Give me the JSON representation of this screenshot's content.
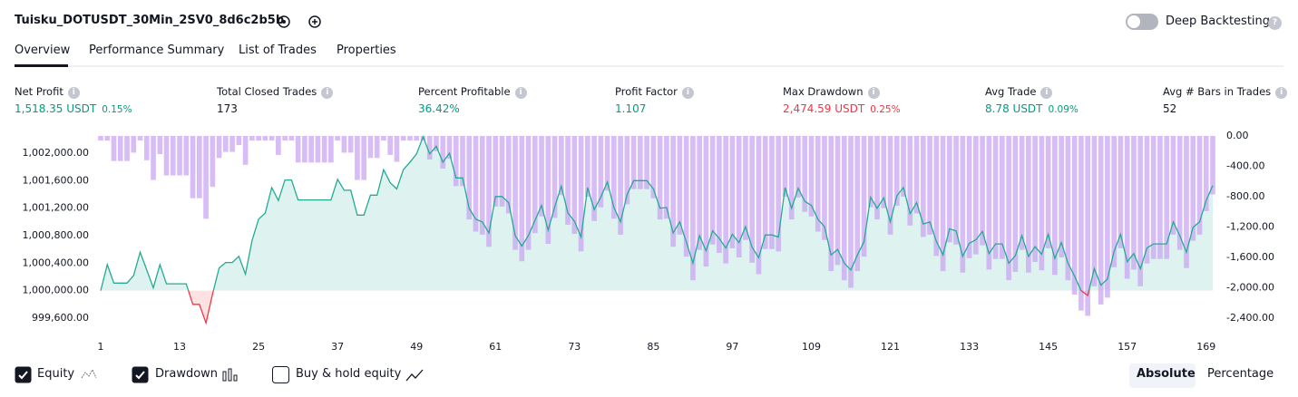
{
  "header": {
    "title": "Tuisku_DOTUSDT_30Min_2SV0_8d6c2b5b",
    "toggle_label": "Deep Backtesting"
  },
  "tabs": [
    "Overview",
    "Performance Summary",
    "List of Trades",
    "Properties"
  ],
  "metrics": [
    {
      "label": "Net Profit",
      "value": "1,518.35 USDT",
      "percent": "0.15%",
      "tone": "positive"
    },
    {
      "label": "Total Closed Trades",
      "value": "173",
      "tone": "neutral"
    },
    {
      "label": "Percent Profitable",
      "value": "36.42%",
      "tone": "positive"
    },
    {
      "label": "Profit Factor",
      "value": "1.107",
      "tone": "positive"
    },
    {
      "label": "Max Drawdown",
      "value": "2,474.59 USDT",
      "percent": "0.25%",
      "tone": "negative"
    },
    {
      "label": "Avg Trade",
      "value": "8.78 USDT",
      "percent": "0.09%",
      "tone": "positive"
    },
    {
      "label": "Avg # Bars in Trades",
      "value": "52",
      "tone": "neutral"
    }
  ],
  "chart_data": {
    "type": "equity_drawdown",
    "x": [
      1,
      2,
      3,
      4,
      5,
      6,
      7,
      8,
      9,
      10,
      11,
      12,
      13,
      14,
      15,
      16,
      17,
      18,
      19,
      20,
      21,
      22,
      23,
      24,
      25,
      26,
      27,
      28,
      29,
      30,
      31,
      32,
      33,
      34,
      35,
      36,
      37,
      38,
      39,
      40,
      41,
      42,
      43,
      44,
      45,
      46,
      47,
      48,
      49,
      50,
      51,
      52,
      53,
      54,
      55,
      56,
      57,
      58,
      59,
      60,
      61,
      62,
      63,
      64,
      65,
      66,
      67,
      68,
      69,
      70,
      71,
      72,
      73,
      74,
      75,
      76,
      77,
      78,
      79,
      80,
      81,
      82,
      83,
      84,
      85,
      86,
      87,
      88,
      89,
      90,
      91,
      92,
      93,
      94,
      95,
      96,
      97,
      98,
      99,
      100,
      101,
      102,
      103,
      104,
      105,
      106,
      107,
      108,
      109,
      110,
      111,
      112,
      113,
      114,
      115,
      116,
      117,
      118,
      119,
      120,
      121,
      122,
      123,
      124,
      125,
      126,
      127,
      128,
      129,
      130,
      131,
      132,
      133,
      134,
      135,
      136,
      137,
      138,
      139,
      140,
      141,
      142,
      143,
      144,
      145,
      146,
      147,
      148,
      149,
      150,
      151,
      152,
      153,
      154,
      155,
      156,
      157,
      158,
      159,
      160,
      161,
      162,
      163,
      164,
      165,
      166,
      167,
      168,
      169,
      170
    ],
    "series": [
      {
        "name": "Equity",
        "type": "line",
        "color": "#22ab94",
        "negative_color": "#f23645",
        "values": [
          1000000,
          1000380,
          1000110,
          1000110,
          1000110,
          1000220,
          1000560,
          1000300,
          1000040,
          1000380,
          1000100,
          1000100,
          1000100,
          1000100,
          999800,
          999800,
          999530,
          999950,
          1000330,
          1000410,
          1000410,
          1000500,
          1000240,
          1000730,
          1001040,
          1001130,
          1001500,
          1001310,
          1001610,
          1001610,
          1001320,
          1001320,
          1001320,
          1001320,
          1001320,
          1001320,
          1001620,
          1001460,
          1001460,
          1001100,
          1001100,
          1001390,
          1001390,
          1001760,
          1001570,
          1001480,
          1001760,
          1001870,
          1001990,
          1002240,
          1001990,
          1002100,
          1001870,
          1002000,
          1001640,
          1001640,
          1001200,
          1001040,
          1001000,
          1000840,
          1001370,
          1001370,
          1001280,
          1000800,
          1000650,
          1000800,
          1001020,
          1001240,
          1000880,
          1001220,
          1001520,
          1001130,
          1001010,
          1000780,
          1001500,
          1001180,
          1001360,
          1001580,
          1001210,
          1001000,
          1001400,
          1001600,
          1001600,
          1001600,
          1001480,
          1001200,
          1001210,
          1000840,
          1001000,
          1000710,
          1000400,
          1000800,
          1000580,
          1000870,
          1000760,
          1000620,
          1000820,
          1000700,
          1000930,
          1000630,
          1000480,
          1000810,
          1000810,
          1000780,
          1001500,
          1001200,
          1001490,
          1001300,
          1001240,
          1001040,
          1000930,
          1000520,
          1000600,
          1000400,
          1000300,
          1000520,
          1000710,
          1001360,
          1001200,
          1001350,
          1001000,
          1001380,
          1001500,
          1001120,
          1001280,
          1000970,
          1001000,
          1000720,
          1000520,
          1000900,
          1000870,
          1000500,
          1000690,
          1000740,
          1000860,
          1000540,
          1000680,
          1000680,
          1000400,
          1000510,
          1000800,
          1000500,
          1000640,
          1000530,
          1000820,
          1000470,
          1000700,
          1000400,
          1000210,
          1000000,
          999930,
          1000320,
          1000080,
          1000170,
          1000570,
          1000820,
          1000420,
          1000540,
          1000320,
          1000620,
          1000680,
          1000680,
          1000680,
          1001000,
          1000800,
          1000560,
          1000920,
          1001000,
          1001310,
          1001530
        ]
      },
      {
        "name": "Drawdown",
        "type": "bar",
        "axis": "y2",
        "color": "#c9a6f2",
        "values": [
          -60,
          -60,
          -330,
          -330,
          -330,
          -220,
          -60,
          -320,
          -580,
          -240,
          -520,
          -520,
          -520,
          -520,
          -820,
          -820,
          -1090,
          -670,
          -290,
          -210,
          -210,
          -120,
          -380,
          -60,
          -60,
          -60,
          -60,
          -250,
          -60,
          -60,
          -350,
          -350,
          -350,
          -350,
          -350,
          -350,
          -60,
          -220,
          -220,
          -580,
          -580,
          -290,
          -290,
          -60,
          -250,
          -340,
          -60,
          -60,
          -60,
          -60,
          -310,
          -200,
          -430,
          -300,
          -660,
          -660,
          -1100,
          -1260,
          -1300,
          -1460,
          -930,
          -930,
          -1020,
          -1500,
          -1650,
          -1500,
          -1280,
          -1060,
          -1420,
          -1080,
          -780,
          -1170,
          -1290,
          -1520,
          -800,
          -1120,
          -940,
          -720,
          -1090,
          -1300,
          -900,
          -700,
          -700,
          -700,
          -820,
          -1100,
          -1090,
          -1460,
          -1300,
          -1590,
          -1900,
          -1500,
          -1720,
          -1430,
          -1540,
          -1680,
          -1480,
          -1600,
          -1370,
          -1670,
          -1820,
          -1490,
          -1490,
          -1520,
          -800,
          -1100,
          -810,
          -1000,
          -1060,
          -1260,
          -1370,
          -1780,
          -1700,
          -1900,
          -2000,
          -1780,
          -1590,
          -940,
          -1100,
          -950,
          -1300,
          -920,
          -800,
          -1180,
          -1020,
          -1330,
          -1300,
          -1580,
          -1780,
          -1400,
          -1430,
          -1800,
          -1610,
          -1560,
          -1440,
          -1760,
          -1620,
          -1620,
          -1900,
          -1790,
          -1500,
          -1800,
          -1660,
          -1770,
          -1480,
          -1830,
          -1600,
          -1900,
          -2090,
          -2300,
          -2370,
          -1980,
          -2220,
          -2130,
          -1730,
          -1480,
          -1880,
          -1760,
          -1980,
          -1680,
          -1620,
          -1620,
          -1620,
          -1300,
          -1500,
          -1740,
          -1380,
          -1300,
          -990,
          -770
        ]
      }
    ],
    "xlim": [
      1,
      170
    ],
    "xticks": [
      1,
      13,
      25,
      37,
      49,
      61,
      73,
      85,
      97,
      109,
      121,
      133,
      145,
      157,
      169
    ],
    "ylim": [
      999600,
      1002000
    ],
    "yticks": [
      {
        "value": 999600,
        "label": "999,600.00"
      },
      {
        "value": 1000000,
        "label": "1,000,000.00"
      },
      {
        "value": 1000400,
        "label": "1,000,400.00"
      },
      {
        "value": 1000800,
        "label": "1,000,800.00"
      },
      {
        "value": 1001200,
        "label": "1,001,200.00"
      },
      {
        "value": 1001600,
        "label": "1,001,600.00"
      },
      {
        "value": 1002000,
        "label": "1,002,000.00"
      }
    ],
    "y2lim": [
      -2400,
      0
    ],
    "y2ticks": [
      {
        "value": 0,
        "label": "0.00"
      },
      {
        "value": -400,
        "label": "-400.00"
      },
      {
        "value": -800,
        "label": "-800.00"
      },
      {
        "value": -1200,
        "label": "-1,200.00"
      },
      {
        "value": -1600,
        "label": "-1,600.00"
      },
      {
        "value": -2000,
        "label": "-2,000.00"
      },
      {
        "value": -2400,
        "label": "-2,400.00"
      }
    ]
  },
  "footer": {
    "extra_checkbox": "Buy & hold equity",
    "buttons": [
      "Absolute",
      "Percentage"
    ]
  }
}
